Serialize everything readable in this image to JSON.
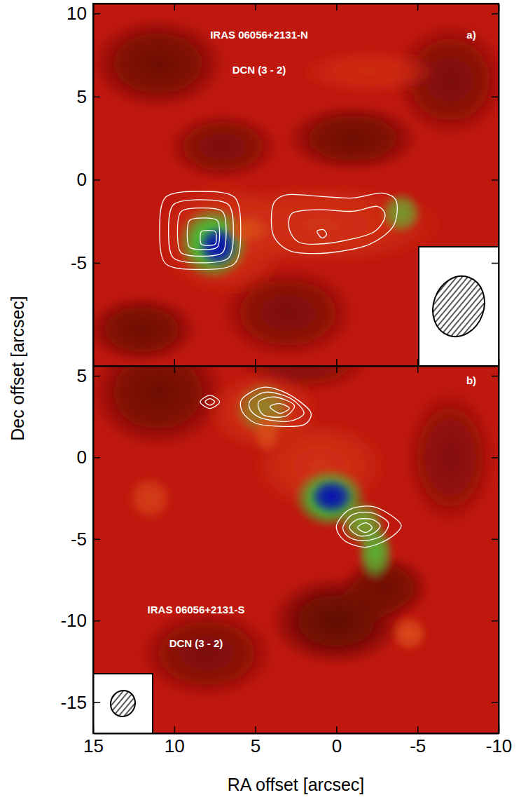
{
  "chart_data": [
    {
      "type": "image",
      "title": "IRAS 06056+2131-N",
      "subtitle": "DCN (3 - 2)",
      "panel": "a)",
      "ylabel": "Dec offset [arcsec]",
      "xlim": [
        15,
        -10
      ],
      "ylim": [
        -11.2,
        10.6
      ],
      "xticks": [
        15,
        10,
        5,
        0,
        -5,
        -10
      ],
      "yticks": [
        10,
        5,
        0,
        -5
      ],
      "tick_labels": "y",
      "clim": [
        0,
        1
      ],
      "background_level": 0.33,
      "emission": [
        {
          "x": 11,
          "y": 7,
          "rx": 3,
          "ry": 2,
          "level": 0.15
        },
        {
          "x": -1,
          "y": 2.5,
          "rx": 3,
          "ry": 1.5,
          "level": 0.15
        },
        {
          "x": 7,
          "y": 2,
          "rx": 2.5,
          "ry": 1.5,
          "level": 0.18
        },
        {
          "x": -7,
          "y": 6,
          "rx": 2.5,
          "ry": 2.5,
          "level": 0.18
        },
        {
          "x": 3,
          "y": -8,
          "rx": 3,
          "ry": 2,
          "level": 0.18
        },
        {
          "x": 12,
          "y": -9,
          "rx": 2.5,
          "ry": 1.5,
          "level": 0.15
        },
        {
          "x": 1,
          "y": -2.7,
          "rx": 5.5,
          "ry": 1.8,
          "level": 0.45
        },
        {
          "x": 7,
          "y": -3.5,
          "rx": 3,
          "ry": 2.5,
          "level": 0.45
        },
        {
          "x": -2,
          "y": 6.5,
          "rx": 3,
          "ry": 1,
          "level": 0.42
        },
        {
          "x": 7.6,
          "y": -3.8,
          "rx": 1.6,
          "ry": 1.6,
          "level": 0.72
        },
        {
          "x": -4,
          "y": -2,
          "rx": 0.9,
          "ry": 0.9,
          "level": 0.65
        },
        {
          "x": 5.5,
          "y": -3,
          "rx": 1,
          "ry": 0.6,
          "level": 0.55
        },
        {
          "x": 7.3,
          "y": -4.0,
          "rx": 0.9,
          "ry": 0.9,
          "level": 1.0
        }
      ],
      "contours": [
        {
          "x": [
            10.9,
            10.53,
            8.4,
            6.28,
            5.9,
            6.28,
            8.4,
            10.53
          ],
          "y": [
            -3.05,
            -1.05,
            -0.7,
            -1.05,
            -3.05,
            -5.05,
            -5.4,
            -5.05
          ]
        },
        {
          "x": [
            10.35,
            10.05,
            8.35,
            6.65,
            6.35,
            6.65,
            8.35,
            10.05
          ],
          "y": [
            -3.1,
            -1.5,
            -1.2,
            -1.5,
            -3.1,
            -4.7,
            -5.0,
            -4.7
          ]
        },
        {
          "x": [
            9.8,
            9.58,
            8.3,
            7.02,
            6.8,
            7.02,
            8.3,
            9.58
          ],
          "y": [
            -3.15,
            -1.92,
            -1.7,
            -1.92,
            -3.15,
            -4.38,
            -4.6,
            -4.38
          ]
        },
        {
          "x": [
            9.2,
            9.05,
            8.2,
            7.35,
            7.2,
            7.35,
            8.2,
            9.05
          ],
          "y": [
            -3.25,
            -2.44,
            -2.3,
            -2.44,
            -3.25,
            -4.06,
            -4.2,
            -4.06
          ]
        },
        {
          "x": [
            8.4,
            8.33,
            7.9,
            7.47,
            7.4,
            7.47,
            7.9,
            8.33
          ],
          "y": [
            -3.5,
            -3.12,
            -3.05,
            -3.12,
            -3.5,
            -3.88,
            -3.95,
            -3.88
          ]
        },
        {
          "x": [
            3.9,
            3.0,
            1.0,
            -1.0,
            -2.8,
            -3.7,
            -3.5,
            -2.0,
            0.5,
            2.8,
            3.9
          ],
          "y": [
            -1.5,
            -0.9,
            -1.0,
            -1.1,
            -0.8,
            -1.3,
            -2.8,
            -3.9,
            -4.4,
            -4.3,
            -3.3
          ]
        },
        {
          "x": [
            2.7,
            1.0,
            -1.0,
            -2.5,
            -3.0,
            -2.2,
            0.3,
            2.2,
            2.9
          ],
          "y": [
            -2.0,
            -1.8,
            -1.9,
            -1.6,
            -2.2,
            -3.2,
            -3.8,
            -3.8,
            -3.0
          ]
        },
        {
          "x": [
            1.2,
            0.8,
            0.6,
            0.9
          ],
          "y": [
            -3.1,
            -3.0,
            -3.3,
            -3.5
          ]
        }
      ],
      "beam": {
        "major": 3.7,
        "minor": 3.1,
        "pa": 20
      }
    },
    {
      "type": "image",
      "title": "IRAS 06056+2131-S",
      "subtitle": "DCN (3 - 2)",
      "panel": "b)",
      "xlabel": "RA offset [arcsec]",
      "xlim": [
        15,
        -10
      ],
      "ylim": [
        -16.9,
        5.6
      ],
      "xticks": [
        15,
        10,
        5,
        0,
        -5,
        -10
      ],
      "yticks": [
        5,
        0,
        -5,
        -10,
        -15
      ],
      "clim": [
        0,
        1
      ],
      "background_level": 0.33,
      "emission": [
        {
          "x": 0,
          "y": -10,
          "rx": 3,
          "ry": 2,
          "level": 0.12
        },
        {
          "x": -3,
          "y": -8,
          "rx": 2,
          "ry": 1.5,
          "level": 0.15
        },
        {
          "x": 11,
          "y": 4,
          "rx": 3,
          "ry": 2.5,
          "level": 0.15
        },
        {
          "x": 8,
          "y": -12,
          "rx": 3,
          "ry": 2,
          "level": 0.18
        },
        {
          "x": -7,
          "y": 0,
          "rx": 2,
          "ry": 3,
          "level": 0.2
        },
        {
          "x": 2,
          "y": 6,
          "rx": 3,
          "ry": 1.5,
          "level": 0.2
        },
        {
          "x": 1,
          "y": -0.5,
          "rx": 3,
          "ry": 2,
          "level": 0.45
        },
        {
          "x": 4.5,
          "y": 2.8,
          "rx": 2.5,
          "ry": 1.8,
          "level": 0.45
        },
        {
          "x": -4.5,
          "y": -10.8,
          "rx": 0.8,
          "ry": 0.8,
          "level": 0.55
        },
        {
          "x": 11.5,
          "y": -2.5,
          "rx": 1,
          "ry": 1,
          "level": 0.5
        },
        {
          "x": 4.5,
          "y": 3.0,
          "rx": 1.3,
          "ry": 1.2,
          "level": 0.62
        },
        {
          "x": 4.3,
          "y": 1.5,
          "rx": 0.6,
          "ry": 0.9,
          "level": 0.55
        },
        {
          "x": 0.4,
          "y": -2.5,
          "rx": 1.6,
          "ry": 1.3,
          "level": 0.72
        },
        {
          "x": -1.6,
          "y": -4.0,
          "rx": 1.0,
          "ry": 1.0,
          "level": 0.66
        },
        {
          "x": -2.4,
          "y": -5.8,
          "rx": 0.8,
          "ry": 1.3,
          "level": 0.68
        },
        {
          "x": 0.3,
          "y": -2.4,
          "rx": 1.0,
          "ry": 0.8,
          "level": 1.0
        }
      ],
      "contours": [
        {
          "x": [
            5.8,
            4.5,
            3.0,
            1.6,
            2.0,
            3.5,
            5.0,
            5.8
          ],
          "y": [
            3.6,
            4.3,
            3.9,
            2.8,
            2.0,
            1.9,
            2.1,
            2.8
          ]
        },
        {
          "x": [
            5.3,
            4.3,
            2.8,
            2.0,
            3.0,
            4.6,
            5.3
          ],
          "y": [
            3.5,
            4.0,
            3.6,
            2.7,
            2.2,
            2.4,
            2.9
          ]
        },
        {
          "x": [
            4.8,
            3.8,
            2.6,
            3.2,
            4.5
          ],
          "y": [
            3.4,
            3.7,
            3.2,
            2.5,
            2.6
          ]
        },
        {
          "x": [
            4.1,
            3.5,
            2.9,
            3.5
          ],
          "y": [
            3.1,
            3.3,
            3.0,
            2.7
          ]
        },
        {
          "x": [
            8.4,
            7.8,
            7.2,
            7.8
          ],
          "y": [
            3.4,
            3.8,
            3.4,
            3.0
          ]
        },
        {
          "x": [
            8.1,
            7.8,
            7.5,
            7.8
          ],
          "y": [
            3.4,
            3.6,
            3.4,
            3.2
          ]
        },
        {
          "x": [
            0.0,
            -0.8,
            -2.2,
            -3.3,
            -4.0,
            -3.2,
            -1.8,
            -0.5
          ],
          "y": [
            -4.2,
            -3.2,
            -3.0,
            -3.5,
            -4.2,
            -5.0,
            -5.5,
            -5.1
          ]
        },
        {
          "x": [
            -0.4,
            -1.0,
            -2.2,
            -3.2,
            -2.8,
            -1.7,
            -0.8
          ],
          "y": [
            -4.3,
            -3.5,
            -3.4,
            -4.0,
            -4.8,
            -5.1,
            -4.9
          ]
        },
        {
          "x": [
            -0.8,
            -1.3,
            -2.2,
            -2.7,
            -2.2,
            -1.4
          ],
          "y": [
            -4.3,
            -3.8,
            -3.8,
            -4.2,
            -4.7,
            -4.8
          ]
        },
        {
          "x": [
            -1.3,
            -1.8,
            -2.2,
            -1.8
          ],
          "y": [
            -4.3,
            -4.0,
            -4.3,
            -4.6
          ]
        }
      ],
      "beam": {
        "major": 1.6,
        "minor": 1.5,
        "pa": 20
      }
    }
  ]
}
